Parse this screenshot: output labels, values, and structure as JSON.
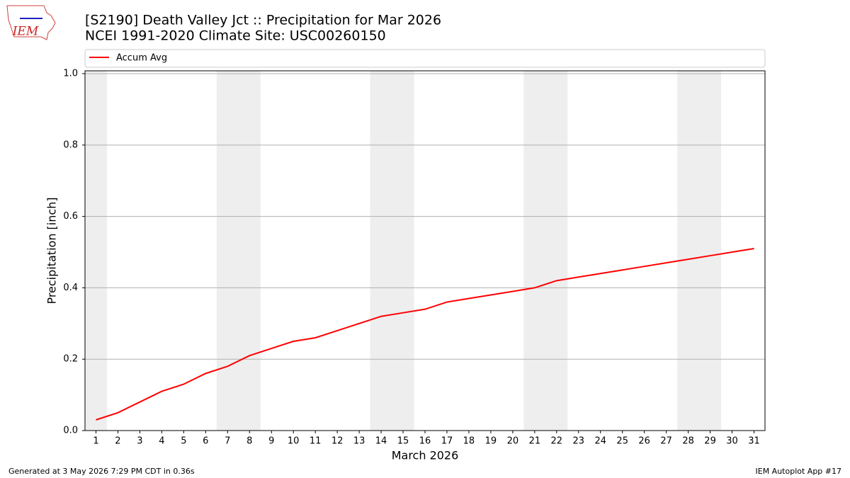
{
  "chart_data": {
    "type": "line",
    "title": "[S2190] Death Valley Jct :: Precipitation for Mar 2026",
    "subtitle": "NCEI 1991-2020 Climate Site: USC00260150",
    "x_label": "March 2026",
    "y_label": "Precipitation [inch]",
    "x": [
      1,
      2,
      3,
      4,
      5,
      6,
      7,
      8,
      9,
      10,
      11,
      12,
      13,
      14,
      15,
      16,
      17,
      18,
      19,
      20,
      21,
      22,
      23,
      24,
      25,
      26,
      27,
      28,
      29,
      30,
      31
    ],
    "series": [
      {
        "name": "Accum Avg",
        "color": "#ff0000",
        "values": [
          0.03,
          0.05,
          0.08,
          0.11,
          0.13,
          0.16,
          0.18,
          0.21,
          0.23,
          0.25,
          0.26,
          0.28,
          0.3,
          0.32,
          0.33,
          0.34,
          0.36,
          0.37,
          0.38,
          0.39,
          0.4,
          0.42,
          0.43,
          0.44,
          0.45,
          0.46,
          0.47,
          0.48,
          0.49,
          0.5,
          0.51
        ]
      }
    ],
    "shaded_spans": [
      [
        0.5,
        1.5
      ],
      [
        6.5,
        8.5
      ],
      [
        13.5,
        15.5
      ],
      [
        20.5,
        22.5
      ],
      [
        27.5,
        29.5
      ]
    ],
    "shade_color": "#eeeeee",
    "xlim": [
      0.5,
      31.5
    ],
    "xticks": [
      1,
      2,
      3,
      4,
      5,
      6,
      7,
      8,
      9,
      10,
      11,
      12,
      13,
      14,
      15,
      16,
      17,
      18,
      19,
      20,
      21,
      22,
      23,
      24,
      25,
      26,
      27,
      28,
      29,
      30,
      31
    ],
    "ylim": [
      0,
      1.008
    ],
    "yticks": [
      {
        "value": 0,
        "label": "0.0"
      },
      0.2,
      0.4,
      0.6,
      0.8,
      {
        "value": 1,
        "label": "1.0"
      }
    ],
    "grid": true,
    "legend": "top",
    "logo": "IEM",
    "footer_left": "Generated at 3 May 2026 7:29 PM CDT in 0.36s",
    "footer_right": "IEM Autoplot App #17"
  }
}
